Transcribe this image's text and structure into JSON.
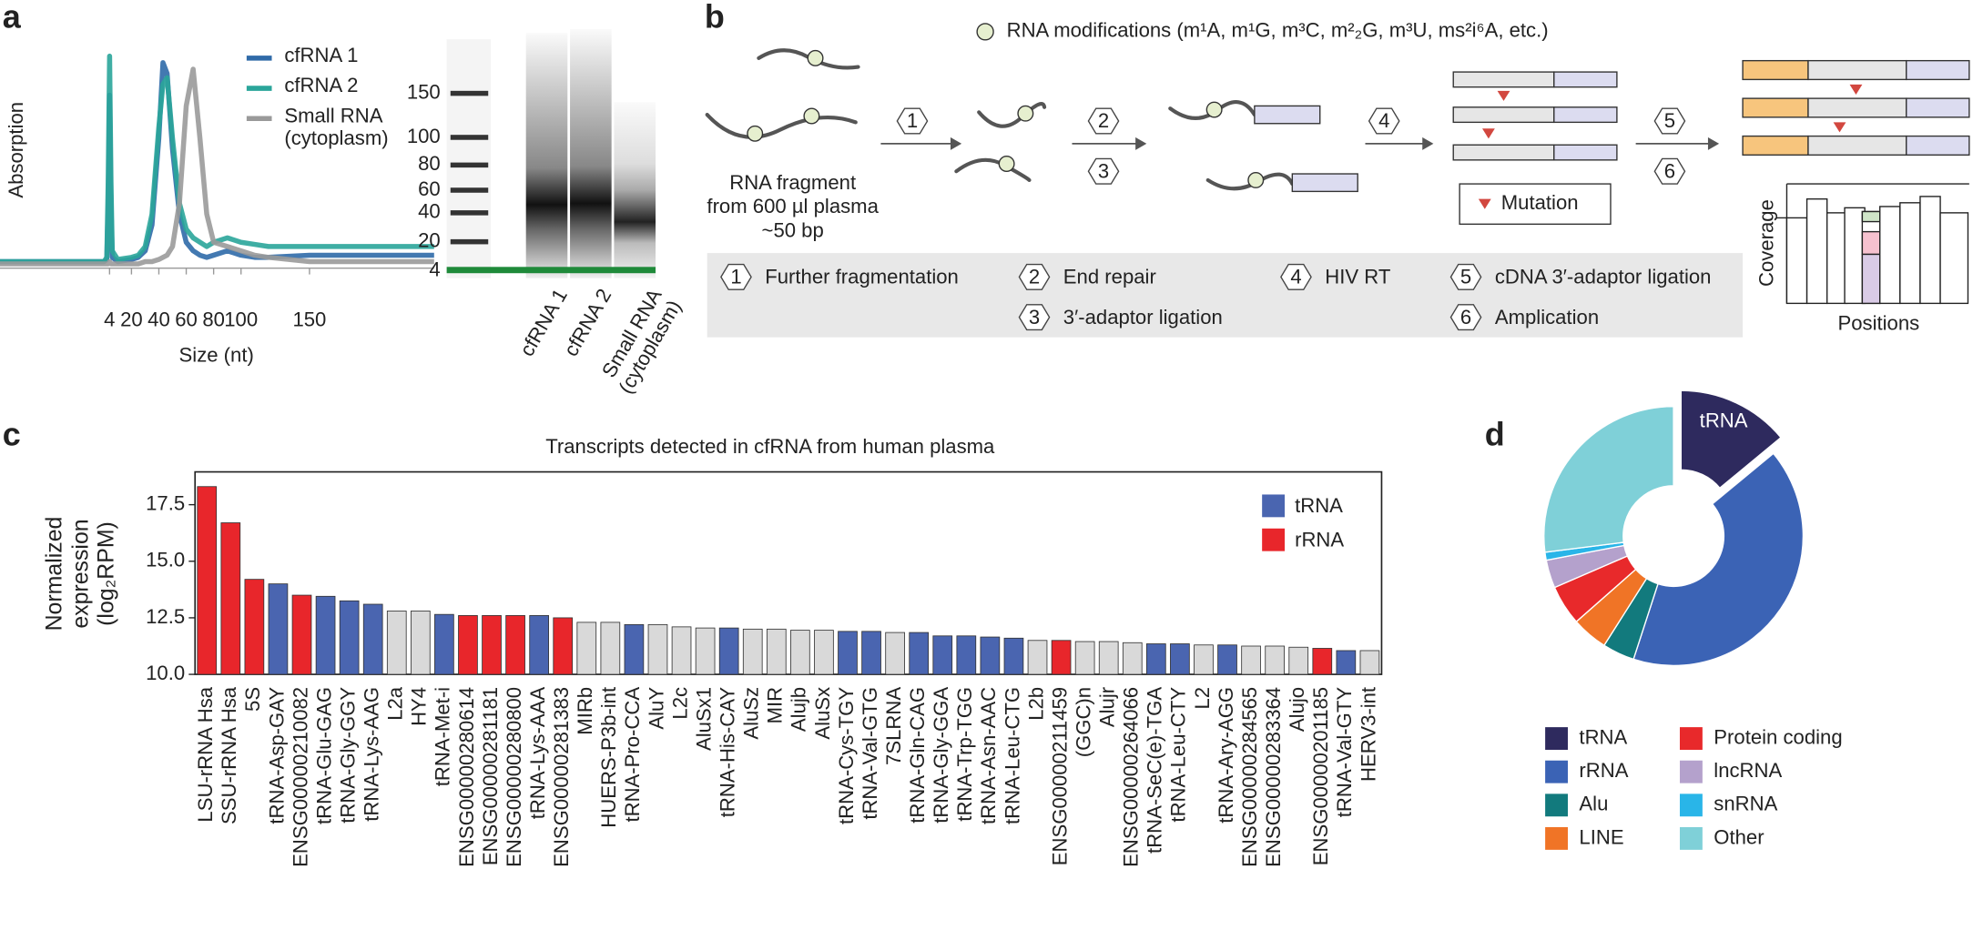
{
  "panel_labels": [
    "a",
    "b",
    "c",
    "d"
  ],
  "chart_data": [
    {
      "type": "line",
      "x_label": "Size (nt)",
      "y_label": "Absorption",
      "x": [
        -76,
        -60,
        -20,
        0,
        2,
        3,
        4,
        5,
        6,
        10,
        20,
        25,
        30,
        35,
        40,
        43,
        46,
        50,
        55,
        60,
        65,
        70,
        75,
        80,
        90,
        100,
        110,
        120,
        150,
        200,
        241
      ],
      "xlim": [
        -76,
        241
      ],
      "ylim": [
        0,
        100
      ],
      "xticks": [
        4,
        20,
        40,
        60,
        80,
        100,
        150
      ],
      "series": [
        {
          "name": "cfRNA 1",
          "color": "#2f6aa8",
          "values": [
            3,
            3,
            3,
            3,
            4,
            30,
            80,
            30,
            5,
            3,
            4,
            5,
            8,
            20,
            60,
            95,
            90,
            55,
            25,
            12,
            8,
            6,
            5,
            6,
            8,
            6,
            5,
            5,
            6,
            6,
            6
          ]
        },
        {
          "name": "cfRNA 2",
          "color": "#2aa59a",
          "values": [
            3,
            3,
            3,
            3,
            5,
            40,
            98,
            40,
            8,
            4,
            5,
            6,
            10,
            25,
            65,
            85,
            88,
            60,
            30,
            18,
            14,
            12,
            10,
            12,
            14,
            12,
            11,
            10,
            10,
            10,
            10
          ]
        },
        {
          "name": "Small RNA\n(cytoplasm)",
          "color": "#9a9a9a",
          "values": [
            2,
            2,
            2,
            2,
            2,
            2,
            3,
            2,
            2,
            2,
            2,
            2,
            3,
            3,
            4,
            5,
            6,
            10,
            30,
            75,
            92,
            60,
            25,
            12,
            10,
            8,
            6,
            5,
            3,
            3,
            3
          ]
        }
      ]
    },
    {
      "type": "bar",
      "title": "Transcripts detected in cfRNA from human plasma",
      "y_label": "Normalized expression\n(log₂RPM)",
      "categories": [
        "LSU-rRNA Hsa",
        "SSU-rRNA Hsa",
        "5S",
        "tRNA-Asp-GAY",
        "ENSG00000210082",
        "tRNA-Glu-GAG",
        "tRNA-Gly-GGY",
        "tRNA-Lys-AAG",
        "L2a",
        "HY4",
        "tRNA-Met-i",
        "ENSG00000280614",
        "ENSG00000281181",
        "ENSG00000280800",
        "tRNA-Lys-AAA",
        "ENSG00000281383",
        "MIRb",
        "HUERS-P3b-int",
        "tRNA-Pro-CCA",
        "AluY",
        "L2c",
        "AluSx1",
        "tRNA-His-CAY",
        "AluSz",
        "MIR",
        "Alujb",
        "AluSx",
        "tRNA-Cys-TGY",
        "tRNA-Val-GTG",
        "7SLRNA",
        "tRNA-Gln-CAG",
        "tRNA-Gly-GGA",
        "tRNA-Trp-TGG",
        "tRNA-Asn-AAC",
        "tRNA-Leu-CTG",
        "L2b",
        "ENSG00000211459",
        "(GGC)n",
        "Alujr",
        "ENSG00000264066",
        "tRNA-SeC(e)-TGA",
        "tRNA-Leu-CTY",
        "L2",
        "tRNA-Ary-AGG",
        "ENSG00000284565",
        "ENSG00000283364",
        "Alujo",
        "ENSG00000201185",
        "tRNA-Val-GTY",
        "HERV3-int"
      ],
      "series": [
        {
          "name": "tRNA",
          "color": "#4a65b0",
          "values": [
            null,
            null,
            null,
            14.0,
            null,
            13.45,
            13.25,
            13.1,
            null,
            null,
            12.65,
            null,
            null,
            null,
            12.6,
            null,
            null,
            null,
            12.2,
            null,
            null,
            null,
            12.05,
            null,
            null,
            null,
            null,
            11.9,
            11.9,
            null,
            11.85,
            11.7,
            11.7,
            11.65,
            11.6,
            null,
            null,
            null,
            null,
            null,
            11.35,
            11.35,
            null,
            11.3,
            null,
            null,
            null,
            null,
            11.05,
            null
          ]
        },
        {
          "name": "rRNA",
          "color": "#e8262b",
          "values": [
            18.3,
            16.7,
            14.2,
            null,
            13.5,
            null,
            null,
            null,
            null,
            null,
            null,
            12.6,
            12.6,
            12.6,
            null,
            12.5,
            null,
            null,
            null,
            null,
            null,
            null,
            null,
            null,
            null,
            null,
            null,
            null,
            null,
            null,
            null,
            null,
            null,
            null,
            null,
            null,
            11.5,
            null,
            null,
            null,
            null,
            null,
            null,
            null,
            null,
            null,
            null,
            11.15,
            null,
            null
          ]
        },
        {
          "color": "#d9d9d9",
          "values": [
            null,
            null,
            null,
            null,
            null,
            null,
            null,
            null,
            12.8,
            12.8,
            null,
            null,
            null,
            null,
            null,
            null,
            12.3,
            12.3,
            null,
            12.2,
            12.1,
            12.05,
            null,
            12.0,
            12.0,
            11.95,
            11.95,
            null,
            null,
            11.85,
            null,
            null,
            null,
            null,
            null,
            11.5,
            null,
            11.45,
            11.45,
            11.4,
            null,
            null,
            11.3,
            null,
            11.25,
            11.25,
            11.2,
            null,
            null,
            11.05
          ]
        }
      ],
      "ylim": [
        10,
        18.95
      ],
      "yticks": [
        {
          "value": 10,
          "label": "10.0"
        },
        12.5,
        {
          "value": 15,
          "label": "15.0"
        },
        17.5
      ],
      "legend": "upper right"
    },
    {
      "type": "pie",
      "donut": true,
      "categories": [
        "tRNA",
        "rRNA",
        "Alu",
        "LINE",
        "Protein coding",
        "lncRNA",
        "snRNA",
        "Other"
      ],
      "values": [
        14,
        41,
        4,
        4.5,
        5,
        3.5,
        1,
        27
      ],
      "colors": [
        "#2e2a5e",
        "#3b63b5",
        "#127a7d",
        "#f07426",
        "#e8292b",
        "#b4a1cc",
        "#29b5e8",
        "#7fd0d8"
      ],
      "explode": "tRNA"
    }
  ],
  "gel": {
    "ladder": [
      150,
      100,
      80,
      60,
      40,
      20,
      4
    ],
    "lanes": [
      "cfRNA 1",
      "cfRNA 2",
      "Small RNA\n(cytoplasm)"
    ]
  },
  "diagram": {
    "modification_legend": "RNA modifications (m¹A, m¹G, m³C, m²₂G, m³U, ms²i⁶A, etc.)",
    "fragment": [
      "RNA fragment",
      "from 600 µl plasma",
      "~50 bp"
    ],
    "steps": [
      {
        "number": 1,
        "label": "Further fragmentation"
      },
      {
        "number": 2,
        "label": "End repair"
      },
      {
        "number": 3,
        "label": "3′-adaptor ligation"
      },
      {
        "number": 4,
        "label": "HIV RT"
      },
      {
        "number": 5,
        "label": "cDNA 3′-adaptor ligation"
      },
      {
        "number": 6,
        "label": "Amplication"
      }
    ],
    "mutation": "Mutation",
    "coverage_axis": "Coverage",
    "positions_axis": "Positions"
  }
}
